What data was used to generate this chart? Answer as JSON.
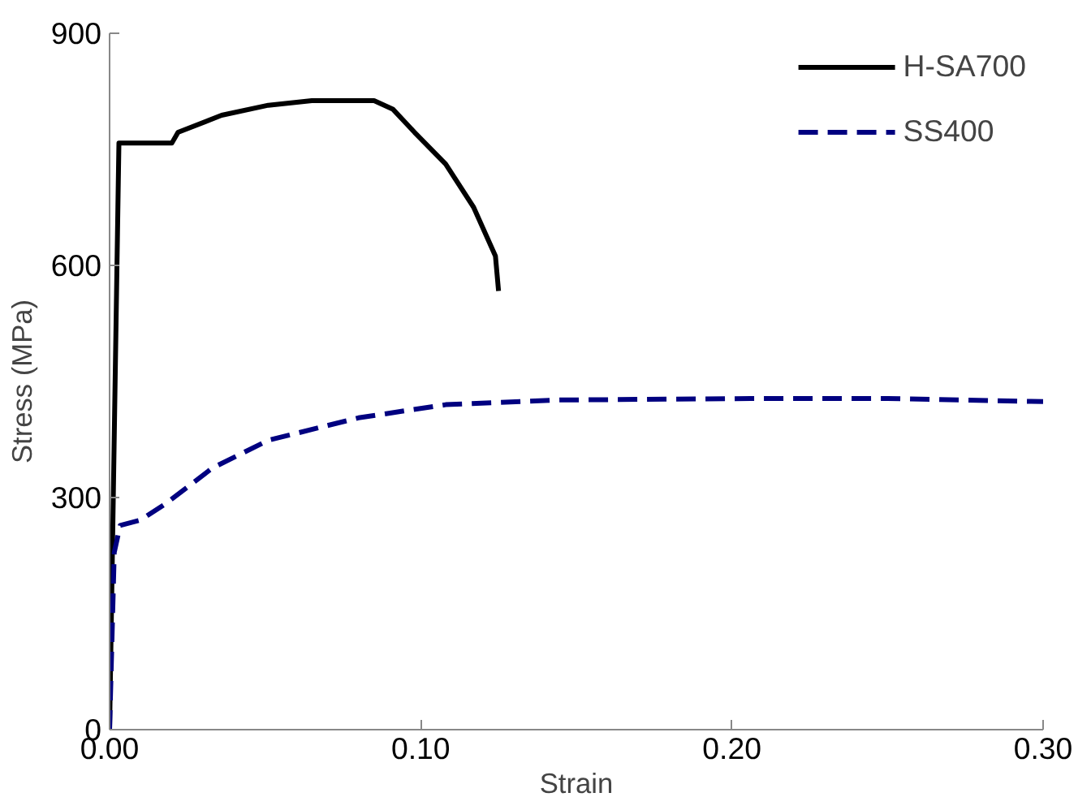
{
  "chart_data": {
    "type": "line",
    "xlabel": "Strain",
    "ylabel": "Stress (MPa)",
    "xlim": [
      0,
      0.3
    ],
    "ylim": [
      0,
      900
    ],
    "xticks": [
      {
        "value": 0,
        "label": "0.00"
      },
      {
        "value": 0.1,
        "label": "0.10"
      },
      {
        "value": 0.2,
        "label": "0.20"
      },
      {
        "value": 0.3,
        "label": "0.30"
      }
    ],
    "yticks": [
      0,
      300,
      600,
      900
    ],
    "grid": false,
    "legend": "top right",
    "marker": "none",
    "series": [
      {
        "name": "H-SA700",
        "color": "#000000",
        "line_style": "solid",
        "x": [
          0,
          0.003,
          0.02,
          0.022,
          0.036,
          0.051,
          0.065,
          0.085,
          0.091,
          0.098,
          0.108,
          0.117,
          0.124,
          0.125
        ],
        "values": [
          0,
          758,
          758,
          772,
          794,
          807,
          813,
          813,
          802,
          772,
          731,
          675,
          612,
          567
        ]
      },
      {
        "name": "SS400",
        "color": "#000080",
        "line_style": "dashed",
        "x": [
          0,
          0.0015,
          0.0034,
          0.01,
          0.018,
          0.033,
          0.051,
          0.08,
          0.108,
          0.144,
          0.206,
          0.25,
          0.3
        ],
        "values": [
          0,
          229,
          264,
          271,
          292,
          338,
          374,
          403,
          420,
          426,
          428,
          428,
          424
        ]
      }
    ]
  }
}
